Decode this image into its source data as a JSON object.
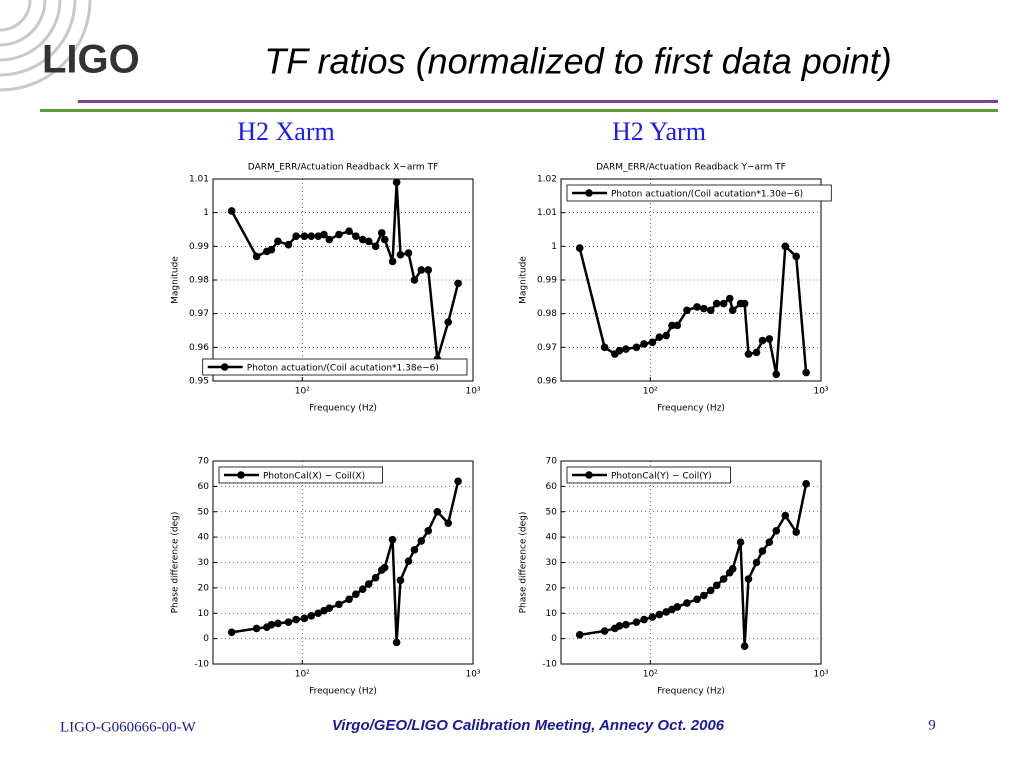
{
  "slide": {
    "logo": "LIGO",
    "title": "TF ratios (normalized to first data point)",
    "left_heading": "H2 Xarm",
    "right_heading": "H2 Yarm",
    "footer_left": "LIGO-G060666-00-W",
    "footer_center": "Virgo/GEO/LIGO Calibration Meeting, Annecy Oct. 2006",
    "page": "9"
  },
  "chart_data": [
    {
      "type": "line",
      "title": "DARM_ERR/Actuation Readback X−arm TF",
      "xlabel": "Frequency (Hz)",
      "ylabel": "Magnitude",
      "xscale": "log",
      "grid": true,
      "legend": "lower right",
      "x": [
        38.6,
        54,
        62,
        66,
        72,
        83,
        92,
        103,
        113,
        124,
        134,
        144,
        164,
        188,
        206,
        226,
        245,
        269,
        292,
        304,
        338,
        357,
        376,
        419,
        454,
        498,
        547,
        618,
        716,
        818
      ],
      "xlim": [
        30,
        1000
      ],
      "xticks": [
        {
          "value": 100,
          "label": "10²"
        },
        {
          "value": 1000,
          "label": "10³"
        }
      ],
      "ylim": [
        0.95,
        1.01
      ],
      "yticks": [
        0.95,
        0.96,
        0.97,
        0.98,
        0.99,
        1,
        1.01
      ],
      "series": [
        {
          "name": "Photon actuation/(Coil acutation*1.38e−6)",
          "color": "#000000",
          "values": [
            1.0005,
            0.987,
            0.9885,
            0.989,
            0.9915,
            0.9905,
            0.993,
            0.993,
            0.993,
            0.993,
            0.9935,
            0.992,
            0.9935,
            0.9945,
            0.993,
            0.992,
            0.9915,
            0.99,
            0.994,
            0.992,
            0.9855,
            1.009,
            0.9875,
            0.988,
            0.98,
            0.983,
            0.983,
            0.9565,
            0.9675,
            0.979
          ]
        }
      ]
    },
    {
      "type": "line",
      "title": "DARM_ERR/Actuation Readback Y−arm TF",
      "xlabel": "Frequency (Hz)",
      "ylabel": "Magnitude",
      "xscale": "log",
      "grid": true,
      "legend": "upper left",
      "x": [
        38.6,
        54,
        62,
        66,
        72,
        83,
        92,
        103,
        113,
        124,
        134,
        144,
        164,
        188,
        206,
        226,
        245,
        269,
        292,
        304,
        338,
        357,
        376,
        419,
        454,
        498,
        547,
        618,
        716,
        818
      ],
      "xlim": [
        30,
        1000
      ],
      "xticks": [
        {
          "value": 100,
          "label": "10²"
        },
        {
          "value": 1000,
          "label": "10³"
        }
      ],
      "ylim": [
        0.96,
        1.02
      ],
      "yticks": [
        0.96,
        0.97,
        0.98,
        0.99,
        1,
        1.01,
        1.02
      ],
      "series": [
        {
          "name": "Photon actuation/(Coil acutation*1.30e−6)",
          "color": "#000000",
          "values": [
            0.9995,
            0.97,
            0.968,
            0.969,
            0.9695,
            0.97,
            0.971,
            0.9715,
            0.973,
            0.9735,
            0.9765,
            0.9765,
            0.981,
            0.982,
            0.9815,
            0.981,
            0.983,
            0.983,
            0.9845,
            0.981,
            0.983,
            0.983,
            0.968,
            0.9685,
            0.972,
            0.9725,
            0.962,
            1.0,
            0.997,
            0.9625
          ]
        }
      ]
    },
    {
      "type": "line",
      "xlabel": "Frequency (Hz)",
      "ylabel": "Phase difference (deg)",
      "xscale": "log",
      "grid": true,
      "legend": "upper left",
      "x": [
        38.6,
        54,
        62,
        66,
        72,
        83,
        92,
        103,
        113,
        124,
        134,
        144,
        164,
        188,
        206,
        226,
        245,
        269,
        292,
        304,
        338,
        357,
        376,
        419,
        454,
        498,
        547,
        618,
        716,
        818
      ],
      "xlim": [
        30,
        1000
      ],
      "xticks": [
        {
          "value": 100,
          "label": "10²"
        },
        {
          "value": 1000,
          "label": "10³"
        }
      ],
      "ylim": [
        -10,
        70
      ],
      "yticks": [
        -10,
        0,
        10,
        20,
        30,
        40,
        50,
        60,
        70
      ],
      "series": [
        {
          "name": "PhotonCal(X) − Coil(X)",
          "color": "#000000",
          "values": [
            2.5,
            4,
            4.5,
            5.5,
            6,
            6.5,
            7.5,
            8,
            9,
            10,
            11,
            12,
            13.5,
            15.5,
            17.5,
            19.5,
            21.5,
            24,
            27,
            28,
            39,
            -1.5,
            23,
            30.5,
            35,
            38.5,
            42.5,
            50,
            45.5,
            62
          ]
        }
      ]
    },
    {
      "type": "line",
      "xlabel": "Frequency (Hz)",
      "ylabel": "Phase difference (deg)",
      "xscale": "log",
      "grid": true,
      "legend": "upper left",
      "x": [
        38.6,
        54,
        62,
        66,
        72,
        83,
        92,
        103,
        113,
        124,
        134,
        144,
        164,
        188,
        206,
        226,
        245,
        269,
        292,
        304,
        338,
        357,
        376,
        419,
        454,
        498,
        547,
        618,
        716,
        818
      ],
      "xlim": [
        30,
        1000
      ],
      "xticks": [
        {
          "value": 100,
          "label": "10²"
        },
        {
          "value": 1000,
          "label": "10³"
        }
      ],
      "ylim": [
        -10,
        70
      ],
      "yticks": [
        -10,
        0,
        10,
        20,
        30,
        40,
        50,
        60,
        70
      ],
      "series": [
        {
          "name": "PhotonCal(Y) − Coil(Y)",
          "color": "#000000",
          "values": [
            1.5,
            3,
            4,
            5,
            5.5,
            6.5,
            7.5,
            8.5,
            9.5,
            10.5,
            11.5,
            12.5,
            14,
            15.5,
            17,
            19,
            21,
            23.5,
            26,
            27.5,
            38,
            -3,
            23.5,
            30,
            34.5,
            38,
            42.5,
            48.5,
            42,
            61
          ]
        }
      ]
    }
  ]
}
